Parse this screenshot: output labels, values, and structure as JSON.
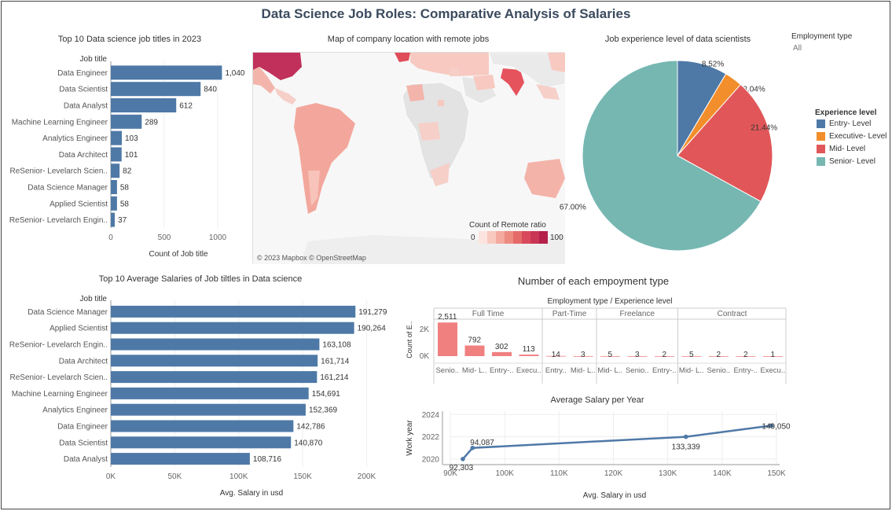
{
  "title": "Data Science Job Roles: Comparative Analysis of Salaries",
  "filter": {
    "label": "Employment type",
    "value": "All"
  },
  "colors": {
    "bar": "#4e79a7",
    "entry": "#4e79a7",
    "executive": "#f28e2b",
    "mid": "#e15759",
    "senior": "#76b7b2",
    "map_low": "#fde3df",
    "map_high": "#c0224f"
  },
  "map": {
    "title": "Map of company location with remote jobs",
    "credit": "© 2023 Mapbox © OpenStreetMap",
    "legend_title": "Count of Remote ratio",
    "legend_min": "0",
    "legend_max": "100"
  },
  "experience_legend": {
    "title": "Experience level",
    "items": [
      {
        "label": "Entry- Level",
        "color": "#4e79a7"
      },
      {
        "label": "Executive- Level",
        "color": "#f28e2b"
      },
      {
        "label": "Mid- Level",
        "color": "#e15759"
      },
      {
        "label": "Senior- Level",
        "color": "#76b7b2"
      }
    ]
  },
  "chart_data": [
    {
      "type": "bar",
      "orientation": "horizontal",
      "title": "Top 10 Data science job titles in 2023",
      "category_header": "Job title",
      "xlabel": "Count of Job title",
      "xlim": [
        0,
        1250
      ],
      "xticks": [
        "0",
        "500",
        "1000"
      ],
      "categories": [
        "Data Engineer",
        "Data Scientist",
        "Data Analyst",
        "Machine Learning Engineer",
        "Analytics Engineer",
        "Data Architect",
        "ReSenior- Levelarch Scien..",
        "Data Science Manager",
        "Applied Scientist",
        "ReSenior- Levelarch Engin.."
      ],
      "values": [
        1040,
        840,
        612,
        289,
        103,
        101,
        82,
        58,
        58,
        37
      ],
      "labels": [
        "1,040",
        "840",
        "612",
        "289",
        "103",
        "101",
        "82",
        "58",
        "58",
        "37"
      ]
    },
    {
      "type": "pie",
      "title": "Job experience level of data scientists",
      "categories": [
        "Entry- Level",
        "Executive- Level",
        "Mid- Level",
        "Senior- Level"
      ],
      "values": [
        8.52,
        3.04,
        21.44,
        67.0
      ],
      "labels": [
        "8.52%",
        "3.04%",
        "21.44%",
        "67.00%"
      ]
    },
    {
      "type": "bar",
      "orientation": "horizontal",
      "title": "Top 10 Average Salaries of Job tiltles in Data science",
      "category_header": "Job title",
      "xlabel": "Avg. Salary in usd",
      "xlim": [
        0,
        220000
      ],
      "xticks": [
        "0K",
        "50K",
        "100K",
        "150K",
        "200K"
      ],
      "categories": [
        "Data Science Manager",
        "Applied Scientist",
        "ReSenior- Levelarch Engin..",
        "Data Architect",
        "ReSenior- Levelarch Scien..",
        "Machine Learning Engineer",
        "Analytics Engineer",
        "Data Engineer",
        "Data Scientist",
        "Data Analyst"
      ],
      "values": [
        191279,
        190264,
        163108,
        161714,
        161214,
        154691,
        152369,
        142786,
        140870,
        108716
      ],
      "labels": [
        "191,279",
        "190,264",
        "163,108",
        "161,714",
        "161,214",
        "154,691",
        "152,369",
        "142,786",
        "140,870",
        "108,716"
      ]
    },
    {
      "type": "bar",
      "title": "Number of each empoyment type",
      "column_header": "Employment type / Experience level",
      "ylabel": "Count of E..",
      "yticks": [
        "0K",
        "2K"
      ],
      "groups": [
        {
          "name": "Full Time",
          "categories": [
            "Senio..",
            "Mid- L..",
            "Entry-..",
            "Execu.."
          ],
          "values": [
            2511,
            792,
            302,
            113
          ],
          "labels": [
            "2,511",
            "792",
            "302",
            "113"
          ]
        },
        {
          "name": "Part-Time",
          "categories": [
            "Entry..",
            "Mid- L.."
          ],
          "values": [
            14,
            3
          ],
          "labels": [
            "14",
            "3"
          ]
        },
        {
          "name": "Freelance",
          "categories": [
            "Mid- L..",
            "Senio..",
            "Entry-.."
          ],
          "values": [
            5,
            3,
            2
          ],
          "labels": [
            "5",
            "3",
            "2"
          ]
        },
        {
          "name": "Contract",
          "categories": [
            "Mid- L..",
            "Senio..",
            "Entry-..",
            "Execu.."
          ],
          "values": [
            5,
            2,
            2,
            1
          ],
          "labels": [
            "5",
            "2",
            "2",
            "1"
          ]
        }
      ]
    },
    {
      "type": "line",
      "title": "Average Salary per Year",
      "xlabel": "Avg. Salary in usd",
      "ylabel": "Work year",
      "xlim": [
        90000,
        150000
      ],
      "ylim": [
        2019.5,
        2024.3
      ],
      "xticks": [
        "90K",
        "100K",
        "110K",
        "120K",
        "130K",
        "140K",
        "150K"
      ],
      "yticks": [
        "2020",
        "2022",
        "2024"
      ],
      "points": [
        {
          "x": 92303,
          "y": 2020,
          "label": "92,303"
        },
        {
          "x": 94087,
          "y": 2021,
          "label": "94,087"
        },
        {
          "x": 133339,
          "y": 2022,
          "label": "133,339"
        },
        {
          "x": 149050,
          "y": 2023,
          "label": "149,050"
        }
      ]
    }
  ]
}
